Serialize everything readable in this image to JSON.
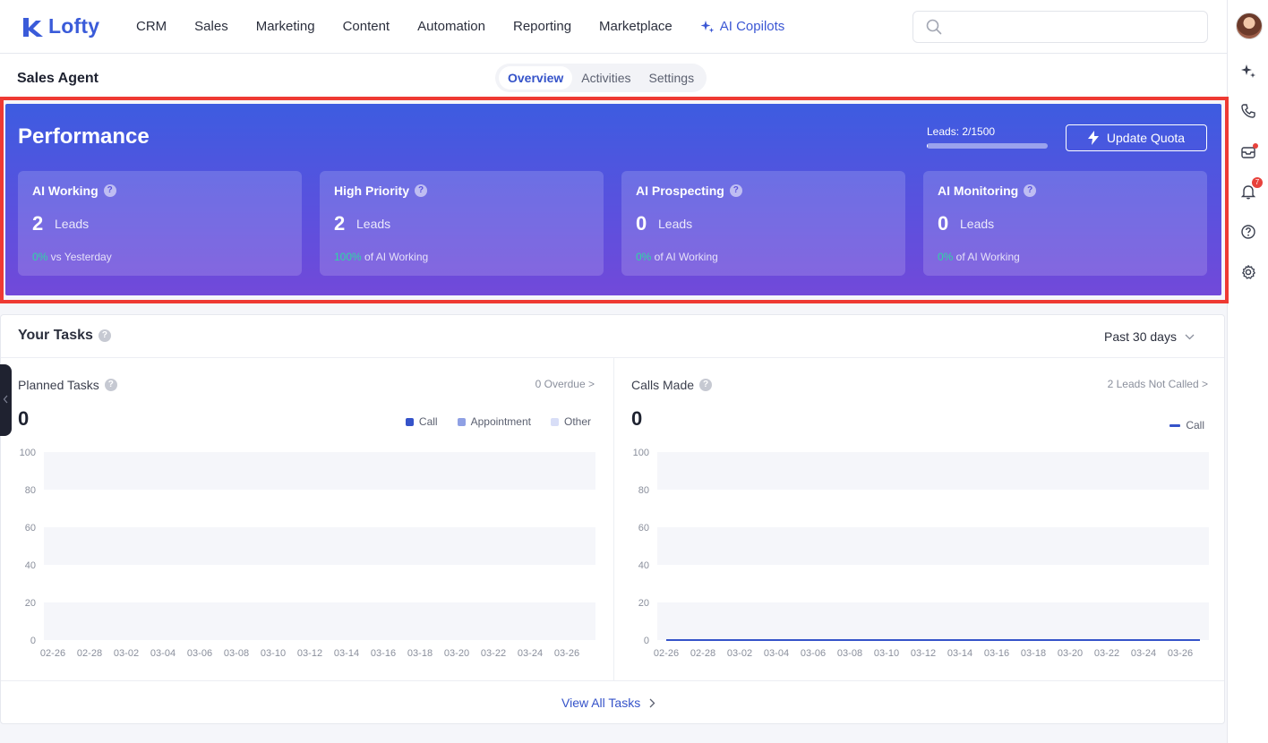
{
  "app": {
    "name": "Lofty"
  },
  "nav": {
    "items": [
      {
        "label": "CRM",
        "name": "nav-item-crm"
      },
      {
        "label": "Sales",
        "name": "nav-item-sales"
      },
      {
        "label": "Marketing",
        "name": "nav-item-marketing"
      },
      {
        "label": "Content",
        "name": "nav-item-content"
      },
      {
        "label": "Automation",
        "name": "nav-item-automation"
      },
      {
        "label": "Reporting",
        "name": "nav-item-reporting"
      },
      {
        "label": "Marketplace",
        "name": "nav-item-marketplace"
      }
    ],
    "ai_copilots": "AI Copilots",
    "search_placeholder": ""
  },
  "rail": {
    "icons": [
      "sparkle-icon",
      "phone-icon",
      "inbox-icon",
      "bell-icon",
      "help-icon",
      "gear-icon"
    ],
    "notification_count": "7"
  },
  "page": {
    "title": "Sales Agent",
    "tabs": [
      {
        "label": "Overview",
        "active": true
      },
      {
        "label": "Activities",
        "active": false
      },
      {
        "label": "Settings",
        "active": false
      }
    ]
  },
  "performance": {
    "title": "Performance",
    "quota_label": "Leads: 2/1500",
    "quota_fraction": 0.0013,
    "update_quota": "Update Quota",
    "unit": "Leads",
    "cards": [
      {
        "title": "AI Working",
        "count": "2",
        "pct": "0%",
        "foot": " vs Yesterday"
      },
      {
        "title": "High Priority",
        "count": "2",
        "pct": "100%",
        "foot": " of AI Working"
      },
      {
        "title": "AI Prospecting",
        "count": "0",
        "pct": "0%",
        "foot": " of AI Working"
      },
      {
        "title": "AI Monitoring",
        "count": "0",
        "pct": "0%",
        "foot": " of AI Working"
      }
    ]
  },
  "tasks": {
    "title": "Your Tasks",
    "range": "Past 30 days",
    "view_all": "View All Tasks",
    "planned": {
      "title": "Planned Tasks",
      "link": "0 Overdue >",
      "total": "0",
      "legend": [
        {
          "label": "Call",
          "color": "#3553c9"
        },
        {
          "label": "Appointment",
          "color": "#8fa0e4"
        },
        {
          "label": "Other",
          "color": "#d8def7"
        }
      ]
    },
    "calls": {
      "title": "Calls Made",
      "link": "2 Leads Not Called >",
      "total": "0",
      "legend": [
        {
          "label": "Call",
          "color": "#3553c9"
        }
      ]
    }
  },
  "chart_data": [
    {
      "type": "bar",
      "title": "Planned Tasks",
      "categories": [
        "02-26",
        "02-28",
        "03-02",
        "03-04",
        "03-06",
        "03-08",
        "03-10",
        "03-12",
        "03-14",
        "03-16",
        "03-18",
        "03-20",
        "03-22",
        "03-24",
        "03-26"
      ],
      "series": [
        {
          "name": "Call",
          "values": [
            0,
            0,
            0,
            0,
            0,
            0,
            0,
            0,
            0,
            0,
            0,
            0,
            0,
            0,
            0
          ]
        },
        {
          "name": "Appointment",
          "values": [
            0,
            0,
            0,
            0,
            0,
            0,
            0,
            0,
            0,
            0,
            0,
            0,
            0,
            0,
            0
          ]
        },
        {
          "name": "Other",
          "values": [
            0,
            0,
            0,
            0,
            0,
            0,
            0,
            0,
            0,
            0,
            0,
            0,
            0,
            0,
            0
          ]
        }
      ],
      "yticks": [
        "0",
        "20",
        "40",
        "60",
        "80",
        "100"
      ],
      "ylim": [
        0,
        100
      ],
      "legend": "top-right",
      "grid": true
    },
    {
      "type": "line",
      "title": "Calls Made",
      "categories": [
        "02-26",
        "02-28",
        "03-02",
        "03-04",
        "03-06",
        "03-08",
        "03-10",
        "03-12",
        "03-14",
        "03-16",
        "03-18",
        "03-20",
        "03-22",
        "03-24",
        "03-26"
      ],
      "series": [
        {
          "name": "Call",
          "values": [
            0,
            0,
            0,
            0,
            0,
            0,
            0,
            0,
            0,
            0,
            0,
            0,
            0,
            0,
            0
          ]
        }
      ],
      "yticks": [
        "0",
        "20",
        "40",
        "60",
        "80",
        "100"
      ],
      "ylim": [
        0,
        100
      ],
      "legend": "top-right",
      "grid": true
    }
  ]
}
